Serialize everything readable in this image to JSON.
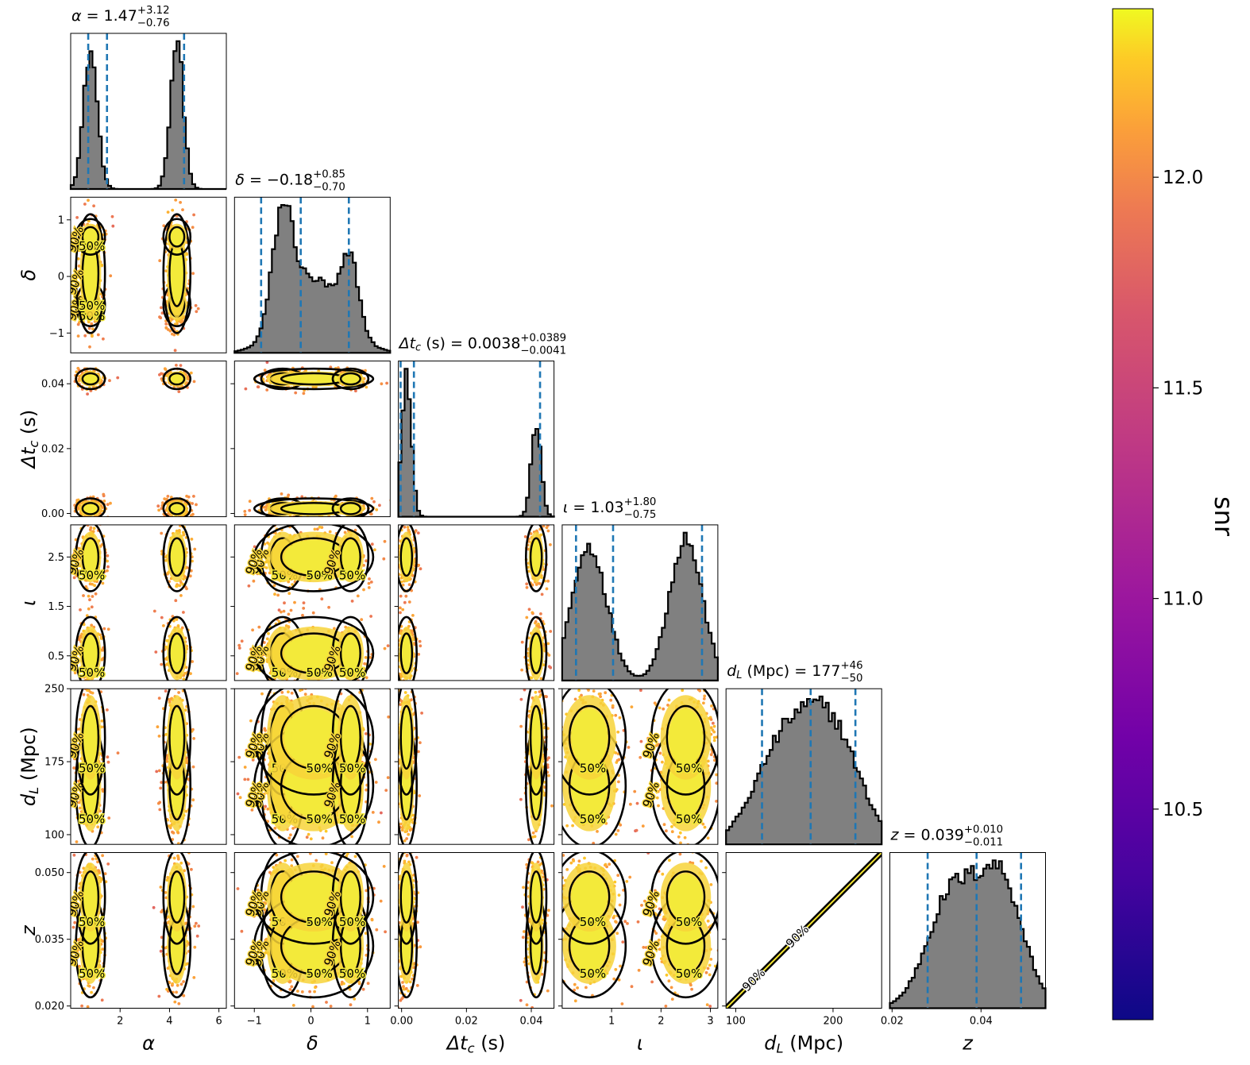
{
  "chart_data": {
    "type": "corner",
    "parameters": [
      {
        "key": "alpha",
        "label": "α",
        "title_name": "α",
        "median": "1.47",
        "plus": "+3.12",
        "minus": "−0.76",
        "range": [
          0.0,
          6.3
        ],
        "ticks": [
          {
            "v": 2,
            "t": "2"
          },
          {
            "v": 4,
            "t": "4"
          },
          {
            "v": 6,
            "t": "6"
          }
        ],
        "quantiles": [
          0.71,
          1.47,
          4.59
        ]
      },
      {
        "key": "delta",
        "label": "δ",
        "title_name": "δ",
        "median": "−0.18",
        "plus": "+0.85",
        "minus": "−0.70",
        "range": [
          -1.35,
          1.4
        ],
        "ticks": [
          {
            "v": -1,
            "t": "−1"
          },
          {
            "v": 0,
            "t": "0"
          },
          {
            "v": 1,
            "t": "1"
          }
        ],
        "quantiles": [
          -0.88,
          -0.18,
          0.67
        ]
      },
      {
        "key": "dtc",
        "label": "Δt",
        "label_sub": "c",
        "label_suffix": " (s)",
        "title_name": "Δt",
        "title_sub": "c",
        "title_suffix": " (s)",
        "median": "0.0038",
        "plus": "+0.0389",
        "minus": "−0.0041",
        "range": [
          -0.001,
          0.047
        ],
        "ticks": [
          {
            "v": 0.0,
            "t": "0.00"
          },
          {
            "v": 0.02,
            "t": "0.02"
          },
          {
            "v": 0.04,
            "t": "0.04"
          }
        ],
        "quantiles": [
          -0.0003,
          0.0038,
          0.0427
        ]
      },
      {
        "key": "iota",
        "label": "ι",
        "title_name": "ι",
        "median": "1.03",
        "plus": "+1.80",
        "minus": "−0.75",
        "range": [
          0.0,
          3.15
        ],
        "ticks": [
          {
            "v": 0.5,
            "t": "0.5"
          },
          {
            "v": 1.5,
            "t": "1.5"
          },
          {
            "v": 2.5,
            "t": "2.5"
          }
        ],
        "xticks": [
          {
            "v": 1,
            "t": "1"
          },
          {
            "v": 2,
            "t": "2"
          },
          {
            "v": 3,
            "t": "3"
          }
        ],
        "quantiles": [
          0.28,
          1.03,
          2.83
        ]
      },
      {
        "key": "dL",
        "label": "d",
        "label_sub": "L",
        "label_suffix": " (Mpc)",
        "title_name": "d",
        "title_sub": "L",
        "title_suffix": " (Mpc)",
        "median": "177",
        "plus": "+46",
        "minus": "−50",
        "range": [
          90,
          250
        ],
        "ticks": [
          {
            "v": 100,
            "t": "100"
          },
          {
            "v": 175,
            "t": "175"
          },
          {
            "v": 250,
            "t": "250"
          }
        ],
        "xticks": [
          {
            "v": 100,
            "t": "100"
          },
          {
            "v": 200,
            "t": "200"
          }
        ],
        "quantiles": [
          127,
          177,
          223
        ]
      },
      {
        "key": "z",
        "label": "z",
        "title_name": "z",
        "median": "0.039",
        "plus": "+0.010",
        "minus": "−0.011",
        "range": [
          0.0195,
          0.0545
        ],
        "ticks": [
          {
            "v": 0.02,
            "t": "0.020"
          },
          {
            "v": 0.035,
            "t": "0.035"
          },
          {
            "v": 0.05,
            "t": "0.050"
          }
        ],
        "xticks": [
          {
            "v": 0.02,
            "t": "0.02"
          },
          {
            "v": 0.04,
            "t": "0.04"
          }
        ],
        "quantiles": [
          0.028,
          0.039,
          0.049
        ]
      }
    ],
    "marginal_histograms": {
      "alpha": [
        {
          "m": 0.8,
          "s": 0.28,
          "w": 0.5
        },
        {
          "m": 4.3,
          "s": 0.26,
          "w": 0.5
        }
      ],
      "delta": [
        {
          "m": -0.5,
          "s": 0.18,
          "w": 0.3
        },
        {
          "m": 0.05,
          "s": 0.5,
          "w": 0.55
        },
        {
          "m": 0.7,
          "s": 0.15,
          "w": 0.15
        }
      ],
      "dtc": [
        {
          "m": 0.0015,
          "s": 0.0015,
          "w": 0.6
        },
        {
          "m": 0.0415,
          "s": 0.0015,
          "w": 0.4
        }
      ],
      "iota": [
        {
          "m": 0.55,
          "s": 0.35,
          "w": 0.5
        },
        {
          "m": 2.5,
          "s": 0.33,
          "w": 0.5
        }
      ],
      "dL": [
        {
          "m": 150,
          "s": 30,
          "w": 0.5
        },
        {
          "m": 200,
          "s": 28,
          "w": 0.5
        }
      ],
      "z": [
        {
          "m": 0.0335,
          "s": 0.0055,
          "w": 0.5
        },
        {
          "m": 0.0445,
          "s": 0.005,
          "w": 0.5
        }
      ]
    },
    "contour_levels": [
      "50%",
      "90%"
    ],
    "colorbar": {
      "label": "snr",
      "range": [
        10.0,
        12.4
      ],
      "ticks": [
        {
          "v": 10.5,
          "t": "10.5"
        },
        {
          "v": 11.0,
          "t": "11.0"
        },
        {
          "v": 11.5,
          "t": "11.5"
        },
        {
          "v": 12.0,
          "t": "12.0"
        }
      ],
      "colormap": "plasma"
    },
    "colors": {
      "histogram_fill": "#808080",
      "quantile_line": "#1f77b4",
      "contour": "#000000"
    }
  }
}
